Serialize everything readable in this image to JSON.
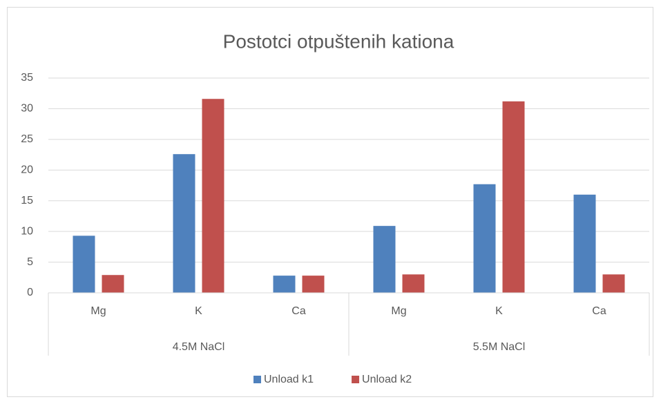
{
  "chart_data": {
    "type": "bar",
    "title": "Postotci otpuštenih kationa",
    "groups": [
      {
        "name": "4.5M NaCl",
        "categories": [
          "Mg",
          "K",
          "Ca"
        ]
      },
      {
        "name": "5.5M NaCl",
        "categories": [
          "Mg",
          "K",
          "Ca"
        ]
      }
    ],
    "series": [
      {
        "name": "Unload k1",
        "color": "#4f81bd",
        "values": [
          9.3,
          22.6,
          2.8,
          10.9,
          17.7,
          16.0
        ]
      },
      {
        "name": "Unload k2",
        "color": "#c0504d",
        "values": [
          2.9,
          31.6,
          2.8,
          3.0,
          31.2,
          3.0
        ]
      }
    ],
    "ylim": [
      0,
      35
    ],
    "yticks": [
      0,
      5,
      10,
      15,
      20,
      25,
      30,
      35
    ],
    "grid": true,
    "legend": "bottom"
  }
}
